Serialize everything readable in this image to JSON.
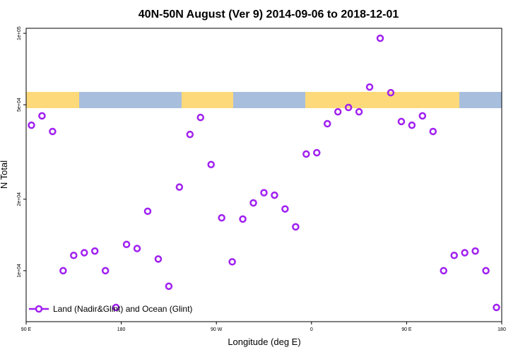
{
  "chart_data": {
    "type": "scatter",
    "title": "40N-50N August (Ver 9)   2014-09-06 to 2018-12-01",
    "xlabel": "Longitude (deg E)",
    "ylabel": "N Total",
    "legend_position": "bottom left",
    "log_y": true,
    "x": [
      95,
      105,
      115,
      125,
      135,
      145,
      155,
      165,
      175,
      185,
      195,
      205,
      215,
      225,
      235,
      245,
      255,
      265,
      275,
      285,
      295,
      305,
      315,
      325,
      335,
      345,
      355,
      365,
      375,
      385,
      395,
      405,
      415,
      425,
      435,
      445,
      455,
      465,
      475,
      485,
      495,
      505,
      515,
      525,
      535
    ],
    "series": [
      {
        "name": "Land (Nadir&Glint) and Ocean (Glint)",
        "color": "#a020f0",
        "values": [
          41000,
          44900,
          38600,
          10000,
          11600,
          11900,
          12100,
          10000,
          7000,
          12900,
          12400,
          17800,
          11200,
          8600,
          22500,
          37500,
          44200,
          28000,
          16700,
          10900,
          16500,
          19300,
          21300,
          20800,
          18200,
          15300,
          31000,
          31400,
          41600,
          46700,
          48700,
          46700,
          59400,
          95300,
          56200,
          42500,
          41000,
          44900,
          38600,
          10000,
          11600,
          11900,
          12100,
          10000,
          7000
        ]
      }
    ],
    "xlim": [
      90,
      540
    ],
    "xticks": [
      {
        "value": 90,
        "label": "90 E"
      },
      {
        "value": 180,
        "label": "180"
      },
      {
        "value": 270,
        "label": "90 W"
      },
      {
        "value": 360,
        "label": "0"
      },
      {
        "value": 450,
        "label": "90 E"
      },
      {
        "value": 540,
        "label": "180"
      }
    ],
    "ylim": [
      6100,
      105000
    ],
    "yticks": [
      {
        "value": 10000,
        "label": "1e+04"
      },
      {
        "value": 20000,
        "label": "2e+04"
      },
      {
        "value": 50000,
        "label": "5e+04"
      },
      {
        "value": 100000,
        "label": "1e+05"
      }
    ]
  }
}
